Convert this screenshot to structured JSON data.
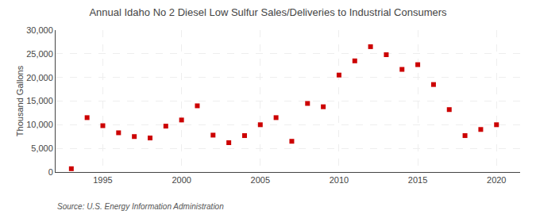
{
  "chart_data": {
    "type": "scatter",
    "title": "Annual Idaho No 2 Diesel Low Sulfur Sales/Deliveries to Industrial Consumers",
    "ylabel": "Thousand Gallons",
    "source": "Source: U.S. Energy Information Administration",
    "x": [
      1993,
      1994,
      1995,
      1996,
      1997,
      1998,
      1999,
      2000,
      2001,
      2002,
      2003,
      2004,
      2005,
      2006,
      2007,
      2008,
      2009,
      2010,
      2011,
      2012,
      2013,
      2014,
      2015,
      2016,
      2017,
      2018,
      2019,
      2020
    ],
    "values": [
      700,
      11500,
      9800,
      8300,
      7500,
      7200,
      9700,
      11000,
      14000,
      7800,
      6200,
      7700,
      10000,
      11500,
      6500,
      14500,
      13800,
      20500,
      23500,
      26500,
      24800,
      21700,
      22700,
      18500,
      13200,
      7700,
      9000,
      10000
    ],
    "color": "#cc0000",
    "marker": "square",
    "xlim": [
      1992,
      2021.5
    ],
    "xticks": [
      1995,
      2000,
      2005,
      2010,
      2015,
      2020
    ],
    "ylim": [
      0,
      30000
    ],
    "yticks": [
      0,
      {
        "value": 5000,
        "label": "5,000"
      },
      {
        "value": 10000,
        "label": "10,000"
      },
      {
        "value": 15000,
        "label": "15,000"
      },
      {
        "value": 20000,
        "label": "20,000"
      },
      {
        "value": 25000,
        "label": "25,000"
      },
      {
        "value": 30000,
        "label": "30,000"
      }
    ],
    "grid": true
  }
}
